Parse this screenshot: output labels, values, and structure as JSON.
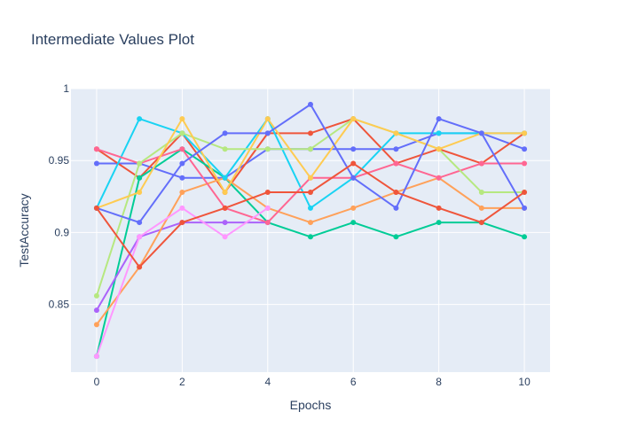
{
  "chart_data": {
    "type": "line",
    "title": "Intermediate Values Plot",
    "xlabel": "Epochs",
    "ylabel": "TestAccuracy",
    "xlim": [
      -0.6,
      10.6
    ],
    "ylim": [
      0.803,
      1.0
    ],
    "x_ticks": [
      0,
      2,
      4,
      6,
      8,
      10
    ],
    "y_ticks": [
      0.85,
      0.9,
      0.95,
      1
    ],
    "y_tick_labels": [
      "0.85",
      "0.9",
      "0.95",
      "1"
    ],
    "grid": true,
    "legend": "none",
    "background": "#e5ecf6",
    "x": [
      0,
      1,
      2,
      3,
      4,
      5,
      6,
      7,
      8,
      9,
      10
    ],
    "series": [
      {
        "color": "#636efa",
        "values": [
          0.948,
          0.948,
          0.938,
          0.938,
          0.958,
          0.958,
          0.958,
          0.958,
          0.969,
          0.969,
          0.958
        ]
      },
      {
        "color": "#ef553b",
        "values": [
          0.958,
          0.938,
          0.969,
          0.928,
          0.969,
          0.969,
          0.979,
          0.948,
          0.958,
          0.948,
          0.969
        ]
      },
      {
        "color": "#00cc96",
        "values": [
          0.814,
          0.938,
          0.958,
          0.938,
          0.907,
          0.897,
          0.907,
          0.897,
          0.907,
          0.907,
          0.897
        ]
      },
      {
        "color": "#ab63fa",
        "values": [
          0.846,
          0.897,
          0.907,
          0.907,
          0.907,
          null,
          null,
          null,
          null,
          null,
          null
        ]
      },
      {
        "color": "#ffa15a",
        "values": [
          0.836,
          0.876,
          0.928,
          0.938,
          0.917,
          0.907,
          0.917,
          0.928,
          0.938,
          0.917,
          0.917
        ]
      },
      {
        "color": "#19d3f3",
        "values": [
          0.917,
          0.979,
          0.969,
          0.938,
          0.979,
          0.917,
          0.938,
          0.969,
          0.969,
          0.969,
          0.969
        ]
      },
      {
        "color": "#ff6692",
        "values": [
          0.958,
          0.948,
          0.958,
          0.917,
          0.907,
          0.938,
          0.938,
          0.948,
          0.938,
          0.948,
          0.948
        ]
      },
      {
        "color": "#b6e880",
        "values": [
          0.856,
          0.948,
          0.969,
          0.958,
          0.958,
          0.958,
          0.979,
          0.969,
          0.958,
          0.928,
          0.928
        ]
      },
      {
        "color": "#ff97ff",
        "values": [
          0.814,
          0.897,
          0.917,
          0.897,
          0.917,
          null,
          null,
          null,
          null,
          null,
          null
        ]
      },
      {
        "color": "#fecb52",
        "values": [
          0.917,
          0.928,
          0.979,
          0.928,
          0.979,
          0.938,
          0.979,
          0.969,
          0.958,
          0.969,
          0.969
        ]
      },
      {
        "color": "#636efa",
        "values": [
          0.917,
          0.907,
          0.948,
          0.969,
          0.969,
          0.989,
          0.938,
          0.917,
          0.979,
          0.969,
          0.917
        ]
      },
      {
        "color": "#ef553b",
        "values": [
          0.917,
          0.876,
          0.907,
          0.917,
          0.928,
          0.928,
          0.948,
          0.928,
          0.917,
          0.907,
          0.928
        ]
      }
    ]
  }
}
